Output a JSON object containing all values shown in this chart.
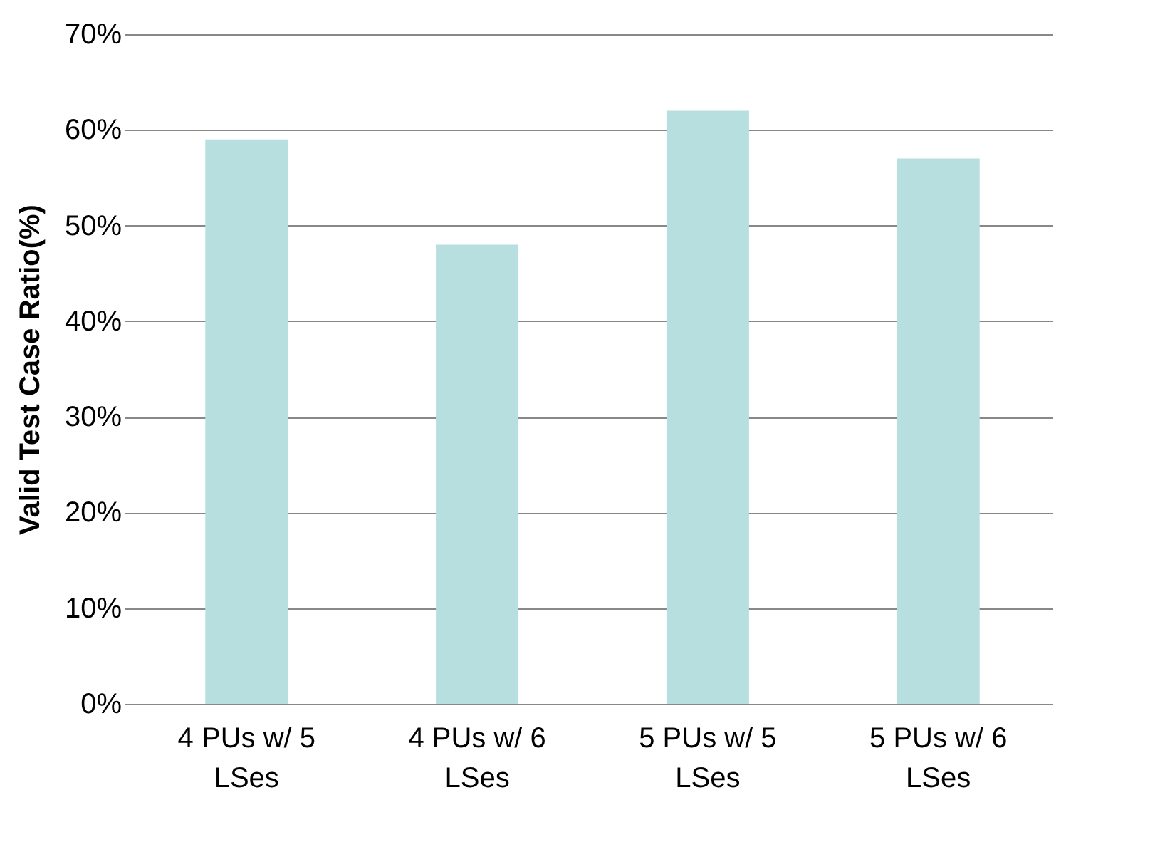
{
  "chart_data": {
    "type": "bar",
    "ylabel": "Valid Test Case Ratio(%)",
    "categories": [
      "4 PUs w/ 5 LSes",
      "4 PUs w/ 6 LSes",
      "5 PUs w/ 5 LSes",
      "5 PUs w/ 6 LSes"
    ],
    "values": [
      59,
      48,
      62,
      57
    ],
    "color": "#b7dfe0",
    "ylim": [
      0,
      70
    ],
    "yticks": [
      {
        "value": 0,
        "label": "0%"
      },
      {
        "value": 10,
        "label": "10%"
      },
      {
        "value": 20,
        "label": "20%"
      },
      {
        "value": 30,
        "label": "30%"
      },
      {
        "value": 40,
        "label": "40%"
      },
      {
        "value": 50,
        "label": "50%"
      },
      {
        "value": 60,
        "label": "60%"
      },
      {
        "value": 70,
        "label": "70%"
      }
    ],
    "grid": "y"
  }
}
